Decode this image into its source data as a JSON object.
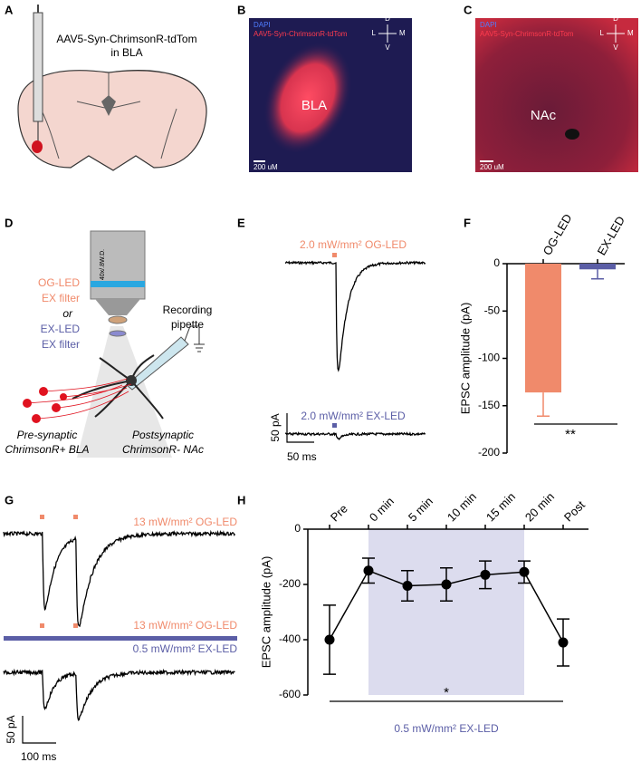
{
  "panel_labels": [
    "A",
    "B",
    "C",
    "D",
    "E",
    "F",
    "G",
    "H"
  ],
  "panel_a": {
    "virus": "AAV5-Syn-ChrimsonR-tdTom",
    "site": "in BLA"
  },
  "panel_b": {
    "stain_1": "DAPI",
    "stain_2": "AAV5-Syn-ChrimsonR-tdTom",
    "region": "BLA",
    "scale_bar": "200 uM",
    "compass": [
      "D",
      "V",
      "L",
      "M"
    ]
  },
  "panel_c": {
    "stain_1": "DAPI",
    "stain_2": "AAV5-Syn-ChrimsonR-tdTom",
    "region": "NAc",
    "scale_bar": "200 uM",
    "compass": [
      "D",
      "V",
      "L",
      "M"
    ]
  },
  "panel_d": {
    "objective": "40x/.8W.D.",
    "og_led": "OG-LED",
    "og_filter": "EX filter",
    "or": "or",
    "ex_led": "EX-LED",
    "ex_filter": "EX filter",
    "pipette": [
      "Recording",
      "pipette"
    ],
    "pre": [
      "Pre-synaptic",
      "ChrimsonR+ BLA"
    ],
    "post": [
      "Postsynaptic",
      "ChrimsonR- NAc"
    ]
  },
  "panel_e": {
    "og_label": "2.0 mW/mm² OG-LED",
    "ex_label": "2.0 mW/mm² EX-LED",
    "scale_y": "50 pA",
    "scale_x": "50 ms"
  },
  "panel_g": {
    "og_label": "13 mW/mm² OG-LED",
    "og_label_2": "13 mW/mm² OG-LED",
    "ex_label": "0.5 mW/mm² EX-LED",
    "scale_y": "50 pA",
    "scale_x": "100 ms"
  },
  "chart_data": [
    {
      "type": "bar",
      "ylabel": "EPSC amplitude (pA)",
      "categories": [
        "OG-LED",
        "EX-LED"
      ],
      "series": [
        {
          "colors": [
            "#f08a6b",
            "#5b5ea6"
          ],
          "values": [
            -136,
            -6
          ],
          "errors": [
            25,
            10
          ]
        }
      ],
      "ylim": [
        -200,
        0
      ],
      "yticks": [
        0,
        -50,
        -100,
        -150,
        -200
      ],
      "significance": "**"
    },
    {
      "type": "line",
      "ylabel": "EPSC amplitude (pA)",
      "categories": [
        "Pre",
        "0 min",
        "5 min",
        "10 min",
        "15 min",
        "20 min",
        "Post"
      ],
      "series": [
        {
          "color": "#000000",
          "values": [
            -400,
            -150,
            -205,
            -200,
            -165,
            -155,
            -410
          ],
          "errors": [
            125,
            45,
            55,
            60,
            50,
            40,
            85
          ]
        }
      ],
      "ylim": [
        -600,
        0
      ],
      "yticks": [
        0,
        -200,
        -400,
        -600
      ],
      "significance": "*",
      "shaded_span": {
        "from": "0 min",
        "to": "20 min",
        "label": "0.5 mW/mm² EX-LED",
        "color": "#dcdcee"
      }
    }
  ]
}
